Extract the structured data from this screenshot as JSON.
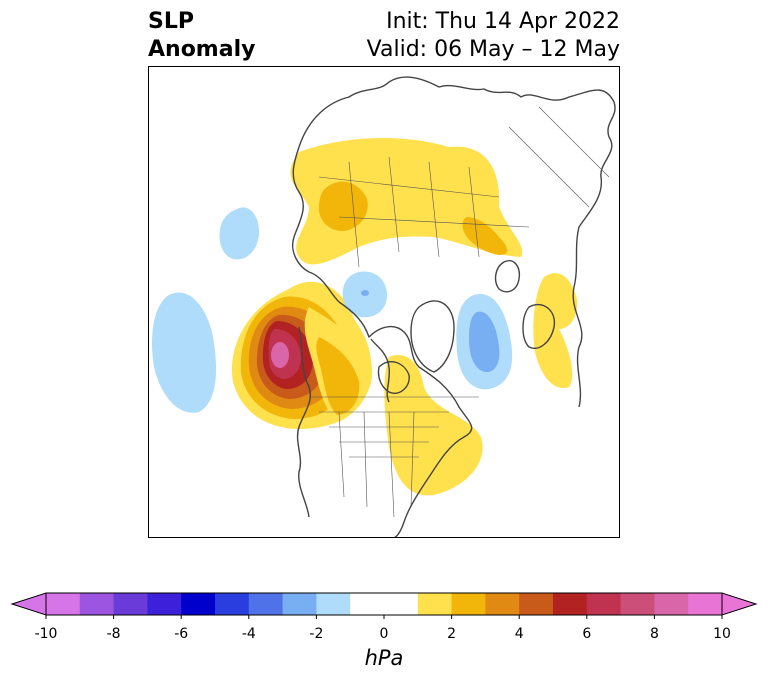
{
  "title": {
    "left_line1": "SLP",
    "left_line2": "Anomaly",
    "right_line1": "Init: Thu 14 Apr 2022",
    "right_line2": "Valid: 06 May – 12 May"
  },
  "colorbar": {
    "unit": "hPa",
    "min": -10,
    "max": 10,
    "ticks": [
      "-10",
      "-8",
      "-6",
      "-4",
      "-2",
      "0",
      "2",
      "4",
      "6",
      "8",
      "10"
    ],
    "colors": [
      "#d675e8",
      "#9b55e0",
      "#6a3bd9",
      "#3d20d9",
      "#0000cc",
      "#2a3edf",
      "#4f72e8",
      "#78aef2",
      "#aedcfa",
      "#ffffff",
      "#ffffff",
      "#ffe04d",
      "#f2b50a",
      "#e08a14",
      "#c85a1a",
      "#b22222",
      "#c03350",
      "#cc4f7a",
      "#d866a8",
      "#e875d6"
    ],
    "under_color": "#d675e8",
    "over_color": "#e875d6"
  },
  "anomalies": [
    {
      "name": "pacific-high",
      "sign": "positive",
      "peak_hpa": 9
    },
    {
      "name": "eurasia-arctic-high",
      "sign": "positive",
      "peak_hpa": 3
    },
    {
      "name": "north-atlantic-high",
      "sign": "positive",
      "peak_hpa": 2
    },
    {
      "name": "eastern-canada-high",
      "sign": "positive",
      "peak_hpa": 2
    },
    {
      "name": "east-asia-high",
      "sign": "positive",
      "peak_hpa": 2
    },
    {
      "name": "greenland-sea-low",
      "sign": "negative",
      "peak_hpa": -3
    },
    {
      "name": "pacific-low",
      "sign": "negative",
      "peak_hpa": -2
    },
    {
      "name": "arctic-low",
      "sign": "negative",
      "peak_hpa": -2
    },
    {
      "name": "aleutian-low",
      "sign": "negative",
      "peak_hpa": -2
    }
  ]
}
